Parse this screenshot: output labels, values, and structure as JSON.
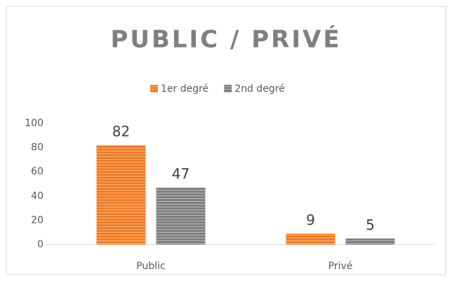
{
  "chart_data": {
    "type": "bar",
    "title": "PUBLIC / PRIVÉ",
    "categories": [
      "Public",
      "Privé"
    ],
    "series": [
      {
        "name": "1er degré",
        "color": "#f47b20",
        "values": [
          82,
          9
        ]
      },
      {
        "name": "2nd degré",
        "color": "#7f7f7f",
        "values": [
          47,
          5
        ]
      }
    ],
    "ylim": [
      0,
      100
    ],
    "yticks": [
      0,
      20,
      40,
      60,
      80,
      100
    ],
    "grid": false,
    "legend": "top",
    "data_labels": true
  }
}
